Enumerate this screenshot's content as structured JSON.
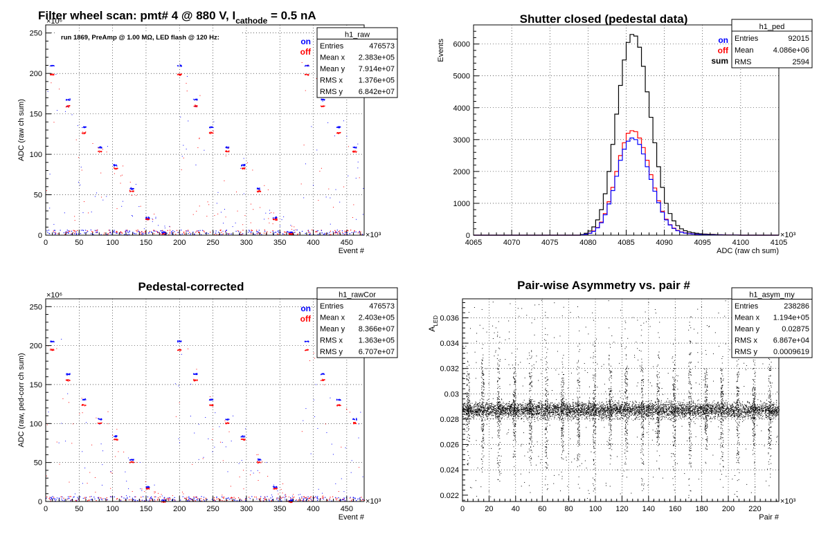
{
  "chart_data": [
    {
      "id": "raw",
      "type": "scatter",
      "title_main": "Filter wheel scan: pmt#   4 @   880 V, I",
      "title_sub": "cathode",
      "title_tail": " = 0.5 nA",
      "annotation": "run 1869, PreAmp @ 1.00 MΩ, LED flash @  120 Hz:",
      "xlabel": "Event #",
      "ylabel": "ADC (raw ch sum)",
      "x_multiplier": "×10³",
      "y_multiplier": "×10⁶",
      "xlim": [
        0,
        476
      ],
      "ylim": [
        0,
        260
      ],
      "xticks": [
        "0",
        "50",
        "100",
        "150",
        "200",
        "250",
        "300",
        "350",
        "400",
        "450"
      ],
      "yticks": [
        "0",
        "50",
        "100",
        "150",
        "200",
        "250"
      ],
      "legend": [
        {
          "name": "on",
          "color": "#0000ff"
        },
        {
          "name": "off",
          "color": "#ff0000"
        }
      ],
      "stats": {
        "name": "h1_raw",
        "rows": [
          [
            "Entries",
            "476573"
          ],
          [
            "Mean x",
            "2.383e+05"
          ],
          [
            "Mean y",
            "7.914e+07"
          ],
          [
            "RMS x",
            "1.376e+05"
          ],
          [
            "RMS y",
            "6.842e+07"
          ]
        ]
      },
      "on_levels": [
        210,
        168,
        134,
        109,
        87,
        58,
        22,
        4
      ],
      "off_levels": [
        199,
        160,
        127,
        104,
        83,
        55,
        20,
        2
      ],
      "grid": true
    },
    {
      "id": "ped",
      "type": "histogram",
      "title": "Shutter closed (pedestal data)",
      "xlabel": "ADC (raw ch sum)",
      "ylabel": "Events",
      "x_multiplier": "×10³",
      "xlim": [
        4065,
        4105
      ],
      "ylim": [
        0,
        6600
      ],
      "xticks": [
        "4065",
        "4070",
        "4075",
        "4080",
        "4085",
        "4090",
        "4095",
        "4100",
        "4105"
      ],
      "yticks": [
        "0",
        "1000",
        "2000",
        "3000",
        "4000",
        "5000",
        "6000"
      ],
      "legend": [
        {
          "name": "on",
          "color": "#0000ff"
        },
        {
          "name": "off",
          "color": "#ff0000"
        },
        {
          "name": "sum",
          "color": "#000000"
        }
      ],
      "stats": {
        "name": "h1_ped",
        "rows": [
          [
            "Entries",
            "92015"
          ],
          [
            "Mean",
            "4.086e+06"
          ],
          [
            "RMS",
            "2594"
          ]
        ]
      },
      "bin_width": 0.5,
      "series": [
        {
          "name": "sum",
          "color": "#000000",
          "x": [
            4079,
            4079.5,
            4080,
            4080.5,
            4081,
            4081.5,
            4082,
            4082.5,
            4083,
            4083.5,
            4084,
            4084.5,
            4085,
            4085.5,
            4086,
            4086.5,
            4087,
            4087.5,
            4088,
            4088.5,
            4089,
            4089.5,
            4090,
            4090.5,
            4091,
            4091.5,
            4092,
            4092.5,
            4093,
            4093.5,
            4094,
            4094.5,
            4095,
            4096,
            4097,
            4098,
            4099,
            4100
          ],
          "values": [
            20,
            60,
            130,
            260,
            480,
            800,
            1300,
            2000,
            2850,
            3800,
            4700,
            5500,
            6050,
            6300,
            6250,
            5900,
            5300,
            4500,
            3700,
            2900,
            2150,
            1500,
            1000,
            680,
            450,
            300,
            200,
            140,
            100,
            80,
            60,
            45,
            35,
            25,
            15,
            10,
            5,
            0
          ]
        },
        {
          "name": "off",
          "color": "#ff0000",
          "x": [
            4079,
            4079.5,
            4080,
            4080.5,
            4081,
            4081.5,
            4082,
            4082.5,
            4083,
            4083.5,
            4084,
            4084.5,
            4085,
            4085.5,
            4086,
            4086.5,
            4087,
            4087.5,
            4088,
            4088.5,
            4089,
            4089.5,
            4090,
            4090.5,
            4091,
            4091.5,
            4092,
            4092.5,
            4093,
            4093.5,
            4094,
            4094.5,
            4095,
            4096,
            4097,
            4098,
            4099,
            4100
          ],
          "values": [
            10,
            30,
            65,
            130,
            240,
            410,
            680,
            1050,
            1500,
            2000,
            2500,
            2900,
            3200,
            3280,
            3250,
            3050,
            2750,
            2350,
            1900,
            1480,
            1080,
            750,
            500,
            330,
            220,
            150,
            100,
            70,
            50,
            40,
            30,
            22,
            18,
            12,
            8,
            5,
            2,
            0
          ]
        },
        {
          "name": "on",
          "color": "#0000ff",
          "x": [
            4079,
            4079.5,
            4080,
            4080.5,
            4081,
            4081.5,
            4082,
            4082.5,
            4083,
            4083.5,
            4084,
            4084.5,
            4085,
            4085.5,
            4086,
            4086.5,
            4087,
            4087.5,
            4088,
            4088.5,
            4089,
            4089.5,
            4090,
            4090.5,
            4091,
            4091.5,
            4092,
            4092.5,
            4093,
            4093.5,
            4094,
            4094.5,
            4095,
            4096,
            4097,
            4098,
            4099,
            4100
          ],
          "values": [
            10,
            30,
            60,
            120,
            230,
            390,
            640,
            980,
            1400,
            1850,
            2350,
            2700,
            2950,
            3050,
            3000,
            2850,
            2550,
            2150,
            1750,
            1380,
            1020,
            720,
            480,
            320,
            210,
            140,
            95,
            65,
            48,
            38,
            28,
            20,
            15,
            10,
            6,
            4,
            2,
            0
          ]
        }
      ],
      "grid": true
    },
    {
      "id": "rawCor",
      "type": "scatter",
      "title": "Pedestal-corrected",
      "xlabel": "Event #",
      "ylabel": "ADC (raw, ped-corr ch sum)",
      "x_multiplier": "×10³",
      "y_multiplier": "×10⁶",
      "xlim": [
        0,
        476
      ],
      "ylim": [
        0,
        260
      ],
      "xticks": [
        "0",
        "50",
        "100",
        "150",
        "200",
        "250",
        "300",
        "350",
        "400",
        "450"
      ],
      "yticks": [
        "0",
        "50",
        "100",
        "150",
        "200",
        "250"
      ],
      "legend": [
        {
          "name": "on",
          "color": "#0000ff"
        },
        {
          "name": "off",
          "color": "#ff0000"
        }
      ],
      "stats": {
        "name": "h1_rawCor",
        "rows": [
          [
            "Entries",
            "476573"
          ],
          [
            "Mean x",
            "2.403e+05"
          ],
          [
            "Mean y",
            "8.366e+07"
          ],
          [
            "RMS x",
            "1.363e+05"
          ],
          [
            "RMS y",
            "6.707e+07"
          ]
        ]
      },
      "on_levels": [
        206,
        164,
        131,
        106,
        84,
        54,
        19,
        2
      ],
      "off_levels": [
        195,
        156,
        124,
        101,
        80,
        51,
        17,
        0
      ],
      "grid": true
    },
    {
      "id": "asym",
      "type": "scatter",
      "title": "Pair-wise Asymmetry vs. pair #",
      "xlabel": "Pair #",
      "ylabel_main": "A",
      "ylabel_sub": "LED",
      "x_multiplier": "×10³",
      "xlim": [
        0,
        238
      ],
      "ylim": [
        0.0215,
        0.0375
      ],
      "xticks": [
        "0",
        "20",
        "40",
        "60",
        "80",
        "100",
        "120",
        "140",
        "160",
        "180",
        "200",
        "220"
      ],
      "yticks": [
        "0.022",
        "0.024",
        "0.026",
        "0.028",
        "0.03",
        "0.032",
        "0.034",
        "0.036"
      ],
      "stats": {
        "name": "h1_asym_my",
        "rows": [
          [
            "Entries",
            "238286"
          ],
          [
            "Mean x",
            "1.194e+05"
          ],
          [
            "Mean y",
            "0.02875"
          ],
          [
            "RMS x",
            "6.867e+04"
          ],
          [
            "RMS y",
            "0.0009619"
          ]
        ]
      },
      "band_center": 0.02875,
      "band_halfwidth": 0.0008,
      "grid": true
    }
  ]
}
